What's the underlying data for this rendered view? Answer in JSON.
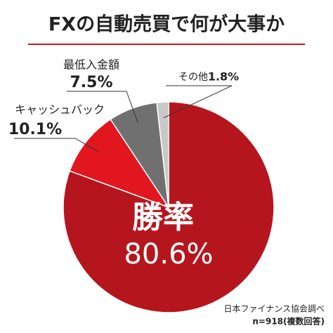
{
  "chart_data": {
    "type": "pie",
    "title": "FXの自動売買で何が大事か",
    "categories": [
      "勝率",
      "キャッシュバック",
      "最低入金額",
      "その他"
    ],
    "values": [
      80.6,
      10.1,
      7.5,
      1.8
    ],
    "value_labels": [
      "80.6%",
      "10.1%",
      "7.5%",
      "1.8%"
    ],
    "colors": [
      "#b5161e",
      "#e2161f",
      "#707070",
      "#c8c8c8"
    ],
    "source": [
      "日本ファイナンス協会調べ",
      "n=918(複数回答)"
    ]
  }
}
